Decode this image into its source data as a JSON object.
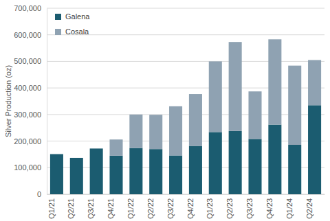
{
  "chart_data": {
    "type": "bar",
    "stacked": true,
    "grid": true,
    "legend": "upper left",
    "y_label": "Silver Production (oz)",
    "categories": [
      "Q1/21",
      "Q2/21",
      "Q3/21",
      "Q4/21",
      "Q1/22",
      "Q2/22",
      "Q3/22",
      "Q4/22",
      "Q1/23",
      "Q2/23",
      "Q3/23",
      "Q4/23",
      "Q1/24",
      "Q2/24"
    ],
    "series": [
      {
        "name": "Galena",
        "color": "#1b5c70",
        "values": [
          151000,
          137000,
          172000,
          145000,
          174000,
          170000,
          146000,
          182000,
          234000,
          238000,
          208000,
          262000,
          186000,
          335000
        ]
      },
      {
        "name": "Cosala",
        "color": "#8fa2b2",
        "values": [
          0,
          0,
          0,
          61000,
          126000,
          129000,
          185000,
          195000,
          266000,
          335000,
          179000,
          321000,
          298000,
          170000
        ]
      }
    ],
    "ylim": [
      0,
      700000
    ],
    "yticks": [
      0,
      {
        "value": 100000,
        "label": "100,000"
      },
      {
        "value": 200000,
        "label": "200,000"
      },
      {
        "value": 300000,
        "label": "300,000"
      },
      {
        "value": 400000,
        "label": "400,000"
      },
      {
        "value": 500000,
        "label": "500,000"
      },
      {
        "value": 600000,
        "label": "600,000"
      },
      {
        "value": 700000,
        "label": "700,000"
      }
    ]
  }
}
